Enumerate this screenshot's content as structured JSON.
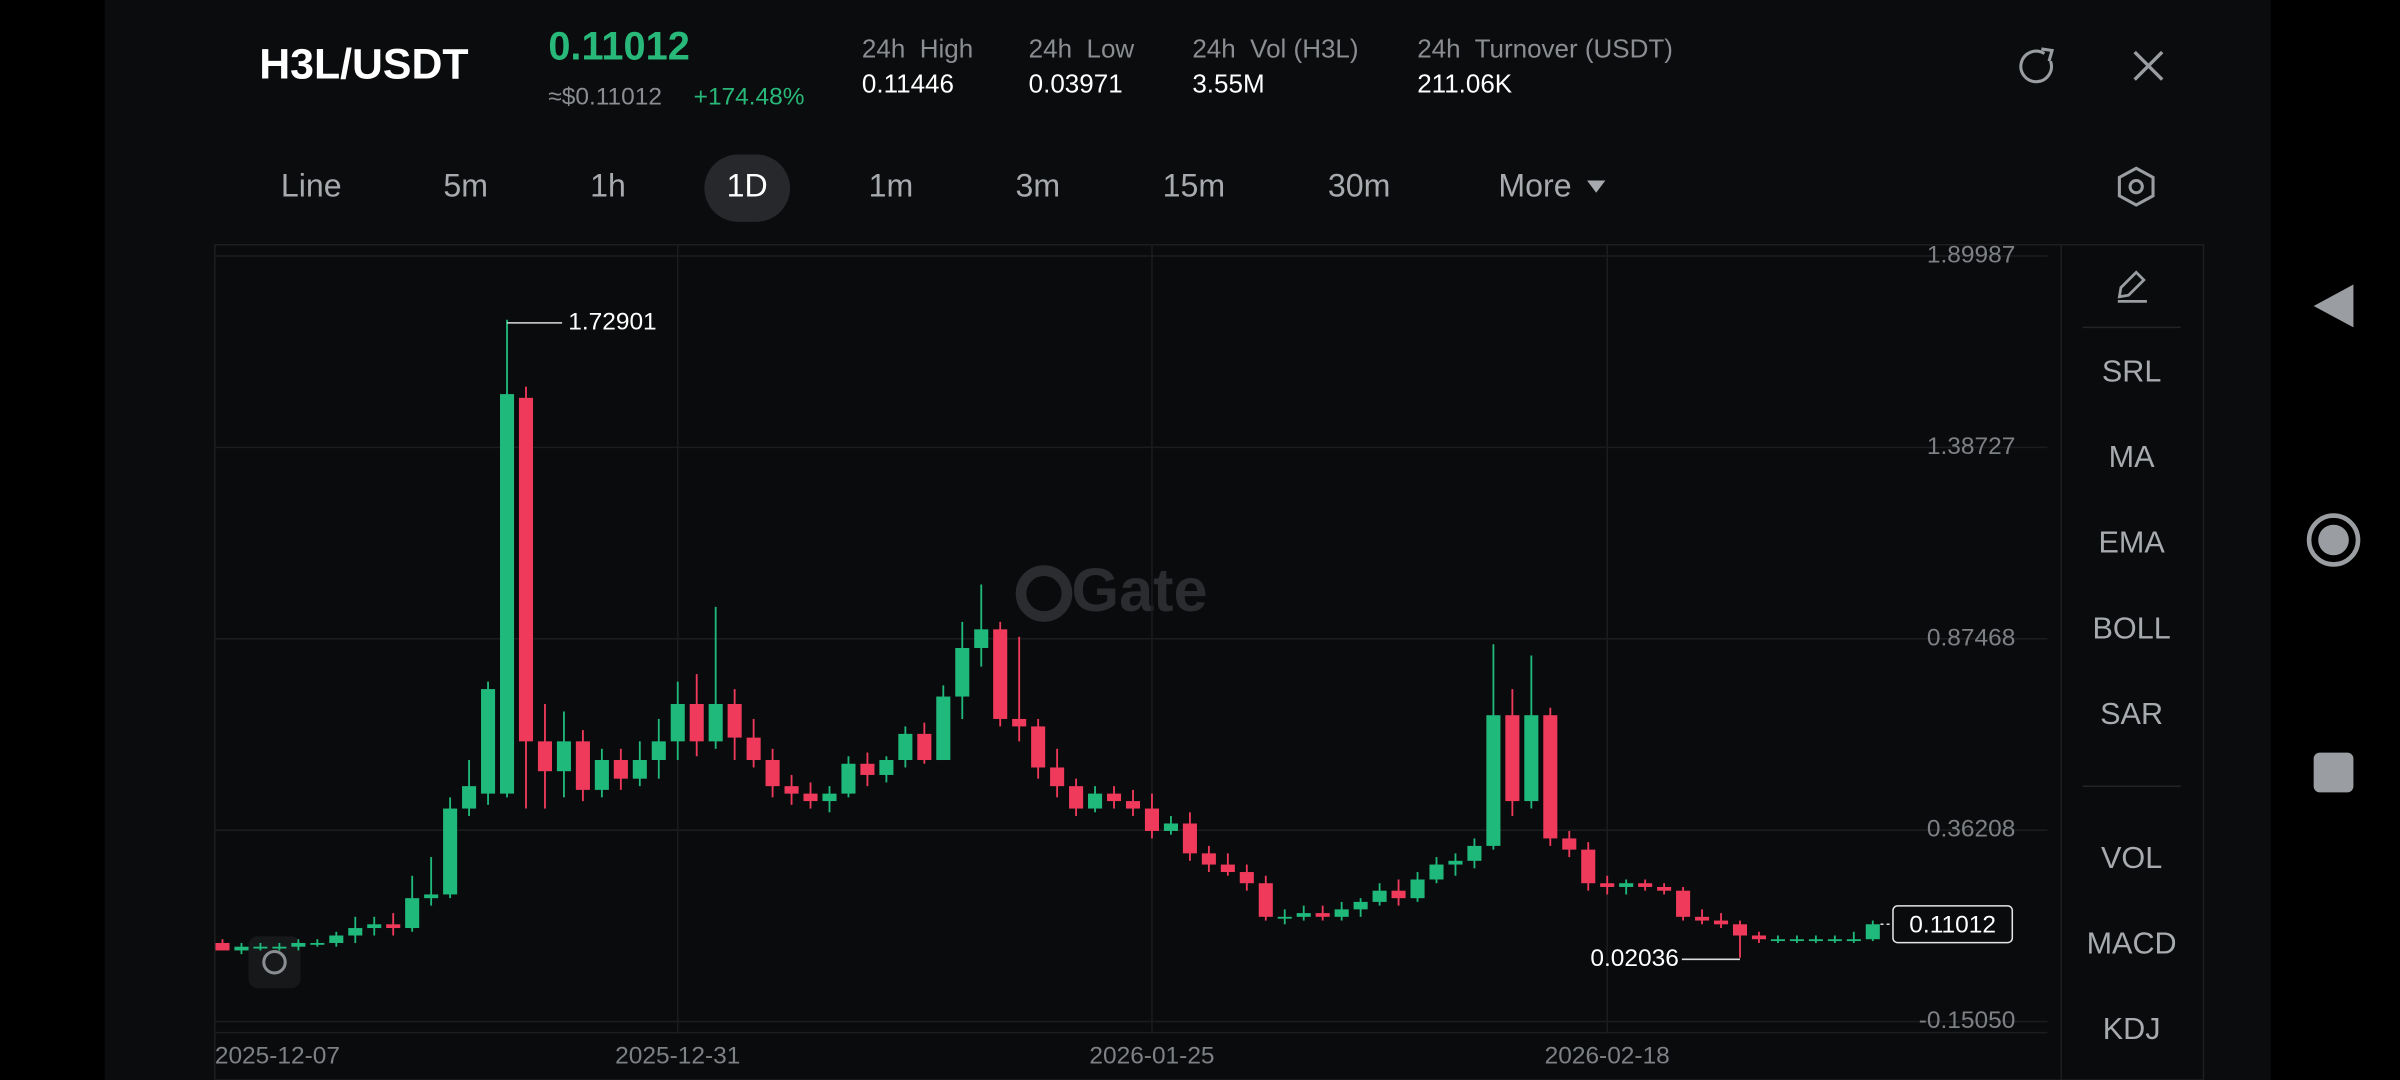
{
  "header": {
    "pair": "H3L/USDT",
    "price": "0.11012",
    "fiat_price": "≈$0.11012",
    "change": "+174.48%",
    "stats": [
      {
        "label": "24h  High",
        "value": "0.11446"
      },
      {
        "label": "24h  Low",
        "value": "0.03971"
      },
      {
        "label": "24h  Vol (H3L)",
        "value": "3.55M"
      },
      {
        "label": "24h  Turnover (USDT)",
        "value": "211.06K"
      }
    ]
  },
  "tabs": [
    "Line",
    "5m",
    "1h",
    "1D",
    "1m",
    "3m",
    "15m",
    "30m",
    "More"
  ],
  "active_tab": "1D",
  "indicators": [
    "SRL",
    "MA",
    "EMA",
    "BOLL",
    "SAR",
    "VOL",
    "MACD",
    "KDJ"
  ],
  "watermark": "Gate",
  "chart_data": {
    "type": "candlestick",
    "categories": [
      "2025-12-07",
      null,
      null,
      null,
      null,
      null,
      null,
      null,
      null,
      null,
      null,
      null,
      null,
      null,
      null,
      null,
      null,
      null,
      null,
      null,
      null,
      null,
      null,
      null,
      "2025-12-31",
      null,
      null,
      null,
      null,
      null,
      null,
      null,
      null,
      null,
      null,
      null,
      null,
      null,
      null,
      null,
      null,
      null,
      null,
      null,
      null,
      null,
      null,
      null,
      null,
      "2026-01-25",
      null,
      null,
      null,
      null,
      null,
      null,
      null,
      null,
      null,
      null,
      null,
      null,
      null,
      null,
      null,
      null,
      null,
      null,
      null,
      null,
      null,
      null,
      null,
      "2026-02-18",
      null,
      null,
      null,
      null,
      null,
      null,
      null,
      null,
      null,
      null,
      null,
      null,
      null,
      null
    ],
    "open": [
      0.06,
      0.04,
      0.05,
      0.05,
      0.05,
      0.06,
      0.06,
      0.08,
      0.1,
      0.11,
      0.1,
      0.18,
      0.19,
      0.42,
      0.46,
      0.46,
      1.52,
      0.6,
      0.52,
      0.6,
      0.47,
      0.55,
      0.5,
      0.55,
      0.6,
      0.7,
      0.6,
      0.7,
      0.61,
      0.55,
      0.48,
      0.46,
      0.44,
      0.46,
      0.54,
      0.51,
      0.55,
      0.62,
      0.55,
      0.72,
      0.85,
      0.9,
      0.66,
      0.64,
      0.53,
      0.48,
      0.42,
      0.46,
      0.44,
      0.42,
      0.36,
      0.38,
      0.3,
      0.27,
      0.25,
      0.22,
      0.13,
      0.13,
      0.14,
      0.13,
      0.15,
      0.17,
      0.2,
      0.18,
      0.23,
      0.27,
      0.28,
      0.32,
      0.67,
      0.44,
      0.67,
      0.34,
      0.31,
      0.22,
      0.21,
      0.22,
      0.21,
      0.2,
      0.13,
      0.12,
      0.11,
      0.08,
      0.07,
      0.07,
      0.07,
      0.07,
      0.07,
      0.07
    ],
    "high": [
      0.07,
      0.06,
      0.06,
      0.06,
      0.07,
      0.07,
      0.09,
      0.13,
      0.13,
      0.14,
      0.24,
      0.29,
      0.45,
      0.55,
      0.76,
      1.72901,
      1.55,
      0.7,
      0.68,
      0.63,
      0.58,
      0.58,
      0.6,
      0.66,
      0.76,
      0.78,
      0.96,
      0.74,
      0.66,
      0.58,
      0.51,
      0.49,
      0.48,
      0.56,
      0.57,
      0.56,
      0.64,
      0.65,
      0.75,
      0.92,
      1.02,
      0.92,
      0.88,
      0.66,
      0.58,
      0.5,
      0.48,
      0.48,
      0.47,
      0.46,
      0.4,
      0.41,
      0.32,
      0.3,
      0.27,
      0.24,
      0.15,
      0.16,
      0.16,
      0.17,
      0.18,
      0.22,
      0.23,
      0.25,
      0.29,
      0.3,
      0.34,
      0.86,
      0.74,
      0.83,
      0.69,
      0.36,
      0.33,
      0.24,
      0.23,
      0.23,
      0.22,
      0.21,
      0.15,
      0.14,
      0.12,
      0.09,
      0.08,
      0.08,
      0.08,
      0.08,
      0.09,
      0.12
    ],
    "low": [
      0.04,
      0.03,
      0.04,
      0.04,
      0.04,
      0.05,
      0.05,
      0.06,
      0.08,
      0.08,
      0.09,
      0.16,
      0.18,
      0.4,
      0.43,
      0.45,
      0.42,
      0.42,
      0.45,
      0.44,
      0.45,
      0.47,
      0.48,
      0.5,
      0.55,
      0.56,
      0.58,
      0.55,
      0.53,
      0.45,
      0.43,
      0.42,
      0.41,
      0.45,
      0.48,
      0.49,
      0.53,
      0.54,
      0.55,
      0.66,
      0.8,
      0.64,
      0.6,
      0.5,
      0.45,
      0.4,
      0.41,
      0.42,
      0.4,
      0.34,
      0.35,
      0.28,
      0.25,
      0.24,
      0.2,
      0.12,
      0.11,
      0.12,
      0.12,
      0.12,
      0.13,
      0.16,
      0.16,
      0.17,
      0.22,
      0.24,
      0.26,
      0.31,
      0.4,
      0.42,
      0.32,
      0.29,
      0.2,
      0.19,
      0.19,
      0.2,
      0.19,
      0.12,
      0.11,
      0.1,
      0.02036,
      0.06,
      0.06,
      0.06,
      0.06,
      0.06,
      0.06,
      0.065
    ],
    "close": [
      0.04,
      0.05,
      0.05,
      0.05,
      0.06,
      0.06,
      0.08,
      0.1,
      0.11,
      0.1,
      0.18,
      0.19,
      0.42,
      0.48,
      0.74,
      1.53,
      0.6,
      0.52,
      0.6,
      0.47,
      0.55,
      0.5,
      0.55,
      0.6,
      0.7,
      0.6,
      0.7,
      0.61,
      0.55,
      0.48,
      0.46,
      0.44,
      0.46,
      0.54,
      0.51,
      0.55,
      0.62,
      0.55,
      0.72,
      0.85,
      0.9,
      0.66,
      0.64,
      0.53,
      0.48,
      0.42,
      0.46,
      0.44,
      0.42,
      0.36,
      0.38,
      0.3,
      0.27,
      0.25,
      0.22,
      0.13,
      0.13,
      0.14,
      0.13,
      0.15,
      0.17,
      0.2,
      0.18,
      0.23,
      0.27,
      0.28,
      0.32,
      0.67,
      0.44,
      0.67,
      0.34,
      0.31,
      0.22,
      0.21,
      0.22,
      0.21,
      0.2,
      0.13,
      0.12,
      0.11,
      0.08,
      0.07,
      0.07,
      0.07,
      0.07,
      0.07,
      0.07,
      0.11012
    ],
    "up_color": "#20b97c",
    "down_color": "#ef3a5c",
    "ylim": [
      -0.18,
      1.93
    ],
    "yticks": [
      1.89987,
      1.38727,
      0.87468,
      0.36208,
      {
        "value": -0.1505,
        "label": "-0.15050"
      }
    ],
    "grid": true
  }
}
